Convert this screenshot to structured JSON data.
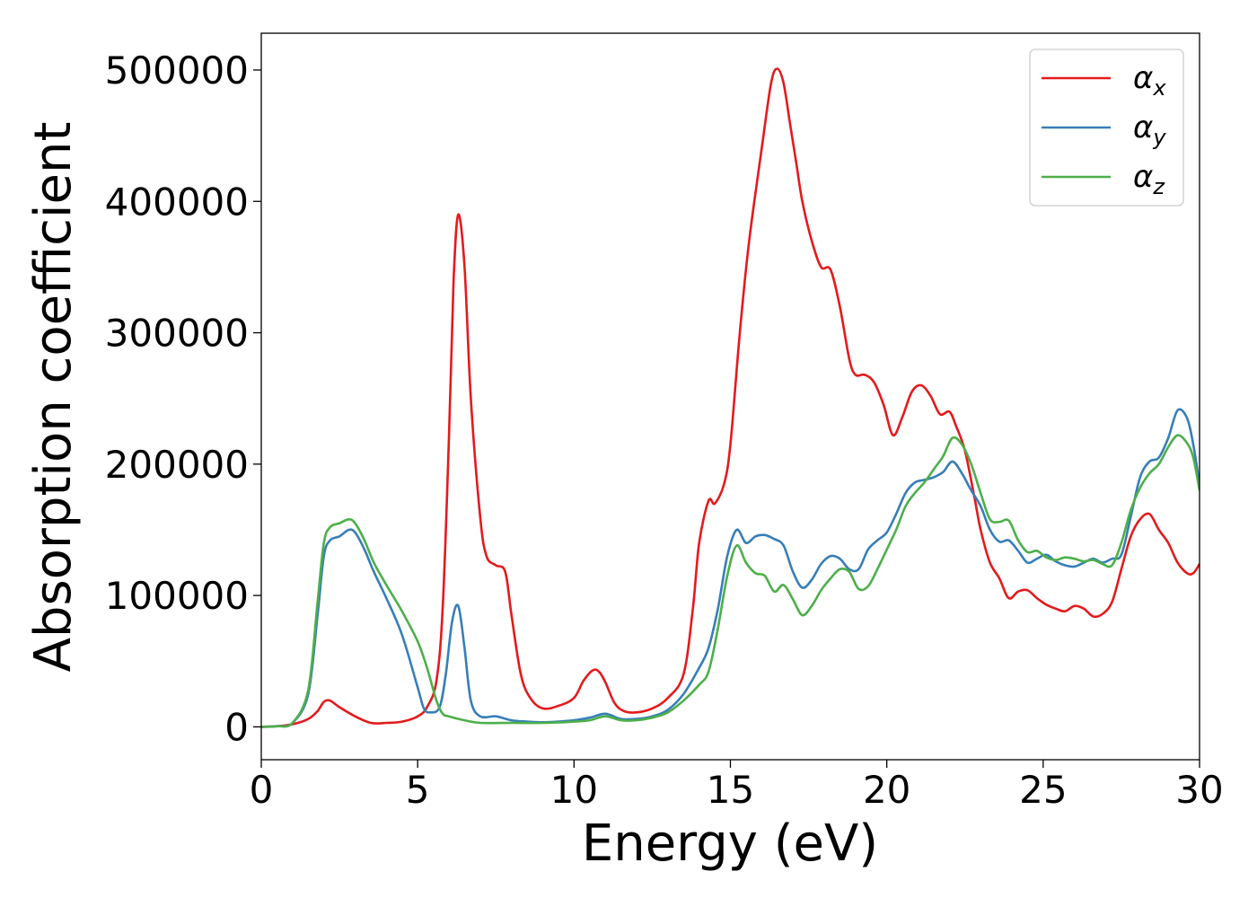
{
  "chart_data": {
    "type": "line",
    "xlabel": "Energy (eV)",
    "ylabel": "Absorption coefficient",
    "xlim": [
      0,
      30
    ],
    "ylim": [
      -25000,
      528000
    ],
    "xticks": [
      0,
      5,
      10,
      15,
      20,
      25,
      30
    ],
    "yticks": [
      0,
      100000,
      200000,
      300000,
      400000,
      500000
    ],
    "grid": false,
    "legend_position": "top-right",
    "series": [
      {
        "name": "α",
        "name_subscript": "x",
        "color": "#e41a1c",
        "x": [
          0,
          0.5,
          1.0,
          1.5,
          1.8,
          2.0,
          2.2,
          2.5,
          3.0,
          3.5,
          4.0,
          4.5,
          5.0,
          5.3,
          5.6,
          5.8,
          6.0,
          6.15,
          6.3,
          6.5,
          6.7,
          7.0,
          7.2,
          7.5,
          7.8,
          8.0,
          8.3,
          8.6,
          9.0,
          9.5,
          10.0,
          10.3,
          10.6,
          10.8,
          11.0,
          11.3,
          11.6,
          12.0,
          12.5,
          13.0,
          13.5,
          13.8,
          14.0,
          14.3,
          14.5,
          14.8,
          15.0,
          15.3,
          15.6,
          16.0,
          16.3,
          16.5,
          16.7,
          16.9,
          17.1,
          17.3,
          17.6,
          17.9,
          18.2,
          18.5,
          18.8,
          19.0,
          19.3,
          19.6,
          19.9,
          20.2,
          20.5,
          20.8,
          21.1,
          21.4,
          21.7,
          22.0,
          22.2,
          22.5,
          22.8,
          23.0,
          23.3,
          23.6,
          23.9,
          24.2,
          24.5,
          24.8,
          25.1,
          25.4,
          25.7,
          26.0,
          26.3,
          26.6,
          26.9,
          27.2,
          27.5,
          27.8,
          28.1,
          28.4,
          28.7,
          29.0,
          29.3,
          29.6,
          29.8,
          30.0
        ],
        "y": [
          0,
          500,
          2000,
          6000,
          12000,
          19000,
          20000,
          15000,
          8000,
          3000,
          3000,
          4000,
          8000,
          15000,
          35000,
          90000,
          220000,
          340000,
          390000,
          350000,
          250000,
          160000,
          130000,
          123000,
          118000,
          85000,
          40000,
          22000,
          14000,
          16000,
          22000,
          35000,
          43000,
          42000,
          34000,
          18000,
          12000,
          11000,
          14000,
          22000,
          40000,
          90000,
          140000,
          172000,
          170000,
          185000,
          215000,
          300000,
          370000,
          440000,
          490000,
          501000,
          490000,
          460000,
          430000,
          400000,
          370000,
          350000,
          348000,
          320000,
          280000,
          268000,
          268000,
          262000,
          245000,
          222000,
          236000,
          255000,
          260000,
          252000,
          238000,
          240000,
          230000,
          210000,
          175000,
          150000,
          125000,
          113000,
          98000,
          103000,
          104000,
          98000,
          93000,
          90000,
          88000,
          92000,
          90000,
          84000,
          86000,
          95000,
          120000,
          145000,
          158000,
          162000,
          150000,
          140000,
          125000,
          117000,
          117000,
          124000
        ]
      },
      {
        "name": "α",
        "name_subscript": "y",
        "color": "#377eb8",
        "x": [
          0,
          0.5,
          1.0,
          1.5,
          1.8,
          2.0,
          2.2,
          2.5,
          2.8,
          3.0,
          3.3,
          3.6,
          4.0,
          4.5,
          5.0,
          5.2,
          5.4,
          5.7,
          5.9,
          6.1,
          6.3,
          6.5,
          6.7,
          7.0,
          7.5,
          8.0,
          8.5,
          9.0,
          9.5,
          10.0,
          10.5,
          11.0,
          11.5,
          12.0,
          12.5,
          13.0,
          13.5,
          14.0,
          14.3,
          14.6,
          14.9,
          15.2,
          15.5,
          15.8,
          16.1,
          16.4,
          16.7,
          17.0,
          17.3,
          17.6,
          17.9,
          18.2,
          18.5,
          18.8,
          19.1,
          19.4,
          19.7,
          20.0,
          20.3,
          20.6,
          20.9,
          21.2,
          21.5,
          21.8,
          22.1,
          22.4,
          22.7,
          23.0,
          23.3,
          23.6,
          23.9,
          24.2,
          24.5,
          24.8,
          25.1,
          25.4,
          25.7,
          26.0,
          26.3,
          26.6,
          26.9,
          27.2,
          27.5,
          27.8,
          28.1,
          28.4,
          28.7,
          29.0,
          29.3,
          29.6,
          29.8,
          30.0
        ],
        "y": [
          0,
          500,
          3000,
          25000,
          85000,
          130000,
          142000,
          145000,
          150000,
          148000,
          135000,
          118000,
          98000,
          70000,
          30000,
          14000,
          11000,
          15000,
          40000,
          80000,
          92000,
          60000,
          20000,
          8000,
          8000,
          5000,
          4000,
          3500,
          4000,
          5000,
          7000,
          10000,
          6000,
          6000,
          8000,
          13000,
          25000,
          45000,
          60000,
          90000,
          130000,
          150000,
          140000,
          145000,
          146000,
          143000,
          138000,
          118000,
          106000,
          112000,
          124000,
          130000,
          128000,
          120000,
          120000,
          135000,
          142000,
          148000,
          162000,
          178000,
          186000,
          188000,
          190000,
          194000,
          202000,
          193000,
          180000,
          168000,
          150000,
          141000,
          142000,
          134000,
          125000,
          128000,
          131000,
          126000,
          123000,
          122000,
          125000,
          128000,
          125000,
          128000,
          131000,
          160000,
          190000,
          202000,
          205000,
          220000,
          241000,
          235000,
          215000,
          184000
        ]
      },
      {
        "name": "α",
        "name_subscript": "z",
        "color": "#4daf4a",
        "x": [
          0,
          0.5,
          1.0,
          1.5,
          1.8,
          2.0,
          2.2,
          2.5,
          2.8,
          3.0,
          3.3,
          3.6,
          4.0,
          4.5,
          5.0,
          5.3,
          5.6,
          5.8,
          6.0,
          6.5,
          7.0,
          8.0,
          9.0,
          10.0,
          10.5,
          11.0,
          11.5,
          12.0,
          12.5,
          13.0,
          13.5,
          14.0,
          14.3,
          14.6,
          14.9,
          15.2,
          15.5,
          15.8,
          16.1,
          16.4,
          16.7,
          17.0,
          17.3,
          17.6,
          17.9,
          18.2,
          18.5,
          18.8,
          19.1,
          19.4,
          19.7,
          20.0,
          20.3,
          20.6,
          20.9,
          21.2,
          21.5,
          21.8,
          22.1,
          22.4,
          22.7,
          23.0,
          23.3,
          23.6,
          23.9,
          24.2,
          24.5,
          24.8,
          25.1,
          25.4,
          25.7,
          26.0,
          26.3,
          26.6,
          26.9,
          27.2,
          27.5,
          27.8,
          28.1,
          28.4,
          28.7,
          29.0,
          29.3,
          29.6,
          29.8,
          30.0
        ],
        "y": [
          0,
          500,
          3000,
          28000,
          95000,
          140000,
          152000,
          155000,
          158000,
          155000,
          142000,
          125000,
          108000,
          88000,
          65000,
          45000,
          20000,
          10000,
          8000,
          5000,
          3000,
          3000,
          3000,
          4000,
          5000,
          8000,
          5000,
          5000,
          7000,
          11000,
          20000,
          32000,
          42000,
          75000,
          115000,
          138000,
          125000,
          117000,
          115000,
          103000,
          108000,
          97000,
          85000,
          92000,
          104000,
          113000,
          120000,
          118000,
          105000,
          107000,
          120000,
          135000,
          150000,
          168000,
          178000,
          186000,
          196000,
          206000,
          220000,
          215000,
          200000,
          178000,
          158000,
          156000,
          157000,
          142000,
          133000,
          134000,
          129000,
          127000,
          129000,
          128000,
          126000,
          127000,
          124000,
          123000,
          140000,
          165000,
          182000,
          193000,
          200000,
          213000,
          222000,
          216000,
          205000,
          180000
        ]
      }
    ]
  }
}
